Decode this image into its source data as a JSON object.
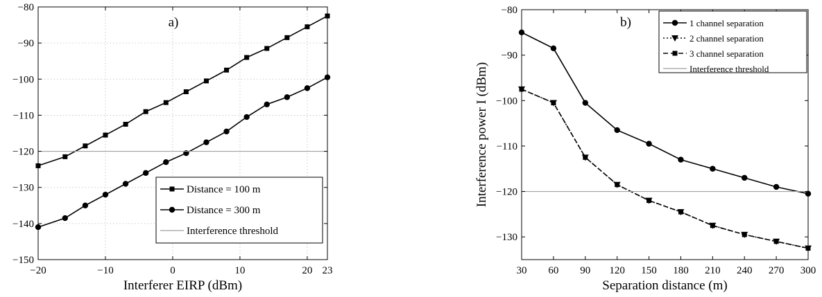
{
  "chart_data": [
    {
      "type": "line",
      "panel_label": "a)",
      "xlabel": "Interferer EIRP (dBm)",
      "ylabel": "",
      "xlim": [
        -20,
        23
      ],
      "ylim": [
        -150,
        -80
      ],
      "xticks": [
        "−20",
        "−10",
        "0",
        "10",
        "20",
        "23"
      ],
      "xtick_values": [
        -20,
        -10,
        0,
        10,
        20,
        23
      ],
      "yticks": [
        "−80",
        "−90",
        "−100",
        "−110",
        "−120",
        "−130",
        "−140",
        "−150"
      ],
      "ytick_values": [
        -80,
        -90,
        -100,
        -110,
        -120,
        -130,
        -140,
        -150
      ],
      "grid": true,
      "legend_position": "bottom-right",
      "series": [
        {
          "name": "Distance = 100 m",
          "marker": "square",
          "line": "solid",
          "x": [
            -20,
            -16,
            -13,
            -10,
            -7,
            -4,
            -1,
            2,
            5,
            8,
            11,
            14,
            17,
            20,
            23
          ],
          "y": [
            -124,
            -121.5,
            -118.5,
            -115.5,
            -112.5,
            -109,
            -106.5,
            -103.5,
            -100.5,
            -97.5,
            -94,
            -91.5,
            -88.5,
            -85.5,
            -82.5
          ]
        },
        {
          "name": "Distance = 300 m",
          "marker": "circle",
          "line": "solid",
          "x": [
            -20,
            -16,
            -13,
            -10,
            -7,
            -4,
            -1,
            2,
            5,
            8,
            11,
            14,
            17,
            20,
            23
          ],
          "y": [
            -141,
            -138.5,
            -135,
            -132,
            -129,
            -126,
            -123,
            -120.5,
            -117.5,
            -114.5,
            -110.5,
            -107,
            -105,
            -102.5,
            -99.5
          ]
        },
        {
          "name": "Interference threshold",
          "marker": "none",
          "line": "solid-gray",
          "x": [
            -20,
            23
          ],
          "y": [
            -120,
            -120
          ]
        }
      ]
    },
    {
      "type": "line",
      "panel_label": "b)",
      "xlabel": "Separation distance (m)",
      "ylabel": "Interference power I (dBm)",
      "xlim": [
        30,
        300
      ],
      "ylim": [
        -135,
        -80
      ],
      "xticks": [
        "30",
        "60",
        "90",
        "120",
        "150",
        "180",
        "210",
        "240",
        "270",
        "300"
      ],
      "xtick_values": [
        30,
        60,
        90,
        120,
        150,
        180,
        210,
        240,
        270,
        300
      ],
      "yticks": [
        "−80",
        "−90",
        "−100",
        "−110",
        "−120",
        "−130"
      ],
      "ytick_values": [
        -80,
        -90,
        -100,
        -110,
        -120,
        -130
      ],
      "grid": false,
      "legend_position": "top-right",
      "series": [
        {
          "name": "1 channel separation",
          "marker": "circle",
          "line": "solid",
          "x": [
            30,
            60,
            90,
            120,
            150,
            180,
            210,
            240,
            270,
            300
          ],
          "y": [
            -85,
            -88.5,
            -100.5,
            -106.5,
            -109.5,
            -113,
            -115,
            -117,
            -119,
            -120.5
          ]
        },
        {
          "name": "2 channel separation",
          "marker": "triangle-down",
          "line": "dotted",
          "x": [
            30,
            60,
            90,
            120,
            150,
            180,
            210,
            240,
            270,
            300
          ],
          "y": [
            -97.5,
            -100.5,
            -112.5,
            -118.5,
            -122,
            -124.5,
            -127.5,
            -129.5,
            -131,
            -132.5
          ]
        },
        {
          "name": "3 channel separation",
          "marker": "square",
          "line": "dashed",
          "x": [
            30,
            60,
            90,
            120,
            150,
            180,
            210,
            240,
            270,
            300
          ],
          "y": [
            -97.5,
            -100.5,
            -112.5,
            -118.5,
            -122,
            -124.5,
            -127.5,
            -129.5,
            -131,
            -132.5
          ]
        },
        {
          "name": "Interference threshold",
          "marker": "none",
          "line": "solid-gray",
          "x": [
            30,
            300
          ],
          "y": [
            -120,
            -120
          ]
        }
      ]
    }
  ]
}
